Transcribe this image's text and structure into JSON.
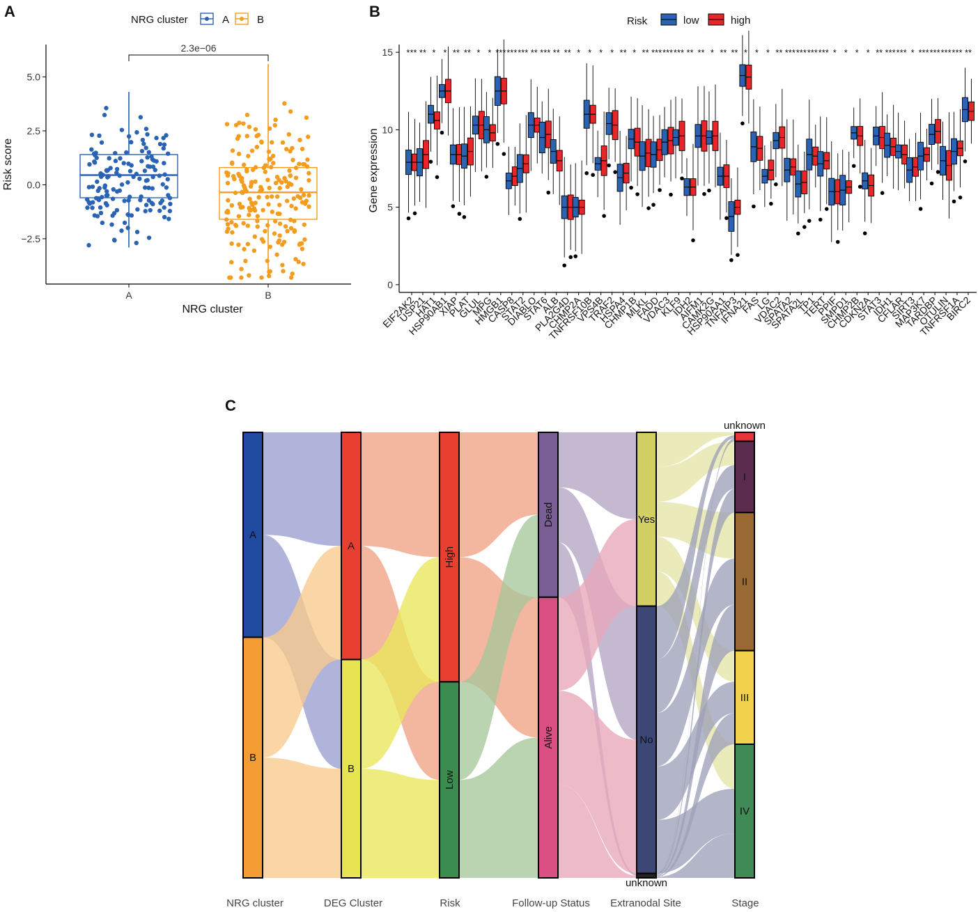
{
  "panels": {
    "a": "A",
    "b": "B",
    "c": "C"
  },
  "chart_data": [
    {
      "type": "box",
      "panel": "A",
      "legend_title": "NRG cluster",
      "xlabel": "NRG cluster",
      "ylabel": "Risk score",
      "categories": [
        "A",
        "B"
      ],
      "colors": {
        "A": "#2a63b4",
        "B": "#f39c1e"
      },
      "ylim": [
        -4.6,
        6.5
      ],
      "yticks": [
        -2.5,
        0.0,
        2.5,
        5.0
      ],
      "ytick_labels": [
        "−2.5",
        "0.0",
        "2.5",
        "5.0"
      ],
      "boxes": [
        {
          "name": "A",
          "min": -2.9,
          "q1": -0.6,
          "median": 0.45,
          "q3": 1.4,
          "max": 4.3,
          "n_points": 150
        },
        {
          "name": "B",
          "min": -4.3,
          "q1": -1.6,
          "median": -0.35,
          "q3": 0.8,
          "max": 5.6,
          "n_points": 210
        }
      ],
      "pvalue": "2.3e−06"
    },
    {
      "type": "box",
      "panel": "B",
      "legend_title": "Risk",
      "series": [
        {
          "name": "low",
          "color": "#2a63b4"
        },
        {
          "name": "high",
          "color": "#e8262a"
        }
      ],
      "ylabel": "Gene expression",
      "ylim": [
        -0.5,
        15.5
      ],
      "yticks": [
        0,
        5,
        10,
        15
      ],
      "genes": [
        "EIF2AK2",
        "USP21",
        "HAT1",
        "HSP90AB1",
        "XIAP",
        "PLAT",
        "GLUL",
        "MPG",
        "HMGB1",
        "CASP8",
        "STAT2",
        "DIABLO",
        "STAT6",
        "ALB",
        "PLA2G4D",
        "CHMP2A",
        "TNFRSF10B",
        "VPS4B",
        "TRAF2",
        "HSPA4",
        "CHMP1B",
        "MLKL",
        "FADD",
        "VDAC3",
        "KLF9",
        "IDH2",
        "AIFM1",
        "CAMK2G",
        "HSP90AA1",
        "TNFAIP3",
        "IFNA21",
        "FAS",
        "LG",
        "VDAC2",
        "SPATA2",
        "SPATA2L",
        "TP1",
        "TERT",
        "PPIF",
        "SMPD1",
        "CHMP2B",
        "CDKN2A",
        "STAT3",
        "IDH1",
        "CFLAR",
        "SIRT3",
        "MAP3K7",
        "TARDBP",
        "OTULIN",
        "TNFRSF1A",
        "BIRC2"
      ],
      "genes_display": [
        "EIF2AK2",
        "USP21",
        "HAT1",
        "HSP90AB1",
        "XIAP",
        "PLAT",
        "GLUL",
        "MPG",
        "HMGB1",
        "CASP8",
        "STAT2",
        "DIABLO",
        "STAT6",
        "ALB",
        "PLA2G4D",
        "CHMP2A",
        "TNFRSF10B",
        "VPS4B",
        "TRAF2",
        "HSPA4",
        "CHMP1B",
        "MLKL",
        "FADD",
        "VDAC3",
        "KLF9",
        "IDH2",
        "AIFM1",
        "CAMK2G",
        "HSP90AA1",
        "TNFAIP3",
        "IFNA21",
        "FAS",
        "LG",
        "VDAC2",
        "SPATA2",
        "SPATA2L",
        "TP1",
        "TERT",
        "PPIF",
        "SMPD1",
        "CHMP2B",
        "CDKN2A",
        "STAT3",
        "IDH1",
        "CFLAR",
        "SIRT3",
        "MAP3K7",
        "TARDBP",
        "OTULIN",
        "TNFRSF1A",
        "BIRC2"
      ],
      "low_medians": [
        7.9,
        7.9,
        11.0,
        12.5,
        8.4,
        8.3,
        10.3,
        10.0,
        12.5,
        6.7,
        7.5,
        10.3,
        9.5,
        8.6,
        5.0,
        5.0,
        11.0,
        7.8,
        10.4,
        6.9,
        9.4,
        8.3,
        8.4,
        9.2,
        9.5,
        6.3,
        9.6,
        9.5,
        7.0,
        4.4,
        13.5,
        8.9,
        7.0,
        9.3,
        7.4,
        6.5,
        8.4,
        7.8,
        6.0,
        6.1,
        9.8,
        6.7,
        9.6,
        9.0,
        8.6,
        7.4,
        8.3,
        9.7,
        8.0,
        8.6,
        11.3
      ],
      "high_medians": [
        7.9,
        8.4,
        10.6,
        12.5,
        8.4,
        8.6,
        10.3,
        9.8,
        12.5,
        7.0,
        7.8,
        10.3,
        9.7,
        8.0,
        5.0,
        5.0,
        11.0,
        8.0,
        10.3,
        7.2,
        9.2,
        8.5,
        8.7,
        9.3,
        9.6,
        6.3,
        9.6,
        9.6,
        7.0,
        5.0,
        13.4,
        8.8,
        7.4,
        9.5,
        7.6,
        6.6,
        8.3,
        8.0,
        6.0,
        6.3,
        9.6,
        6.4,
        9.5,
        8.9,
        8.4,
        7.6,
        8.4,
        9.9,
        7.7,
        8.8,
        11.2
      ],
      "significance_marks": [
        "***",
        "**",
        "*",
        "*",
        "**",
        "**",
        "*",
        "*",
        "***",
        "***",
        "***",
        "**",
        "***",
        "**",
        "**",
        "*",
        "*",
        "*",
        "*",
        "**",
        "*",
        "**",
        "***",
        "***",
        "***",
        "**",
        "**",
        "*",
        "**",
        "**",
        "*",
        "*",
        "*",
        "**",
        "***",
        "***",
        "***",
        "***",
        "*",
        "*",
        "*",
        "*",
        "**",
        "***",
        "***",
        "*",
        "***",
        "***",
        "***",
        "***",
        "**"
      ]
    },
    {
      "type": "sankey",
      "panel": "C",
      "axes": [
        "NRG cluster",
        "DEG Cluster",
        "Risk",
        "Follow-up Status",
        "Extranodal Site",
        "Stage"
      ],
      "nodes": [
        {
          "axis": "NRG cluster",
          "items": [
            {
              "label": "A",
              "value": 46,
              "color": "#1f4aa0"
            },
            {
              "label": "B",
              "value": 54,
              "color": "#f39c34"
            }
          ]
        },
        {
          "axis": "DEG Cluster",
          "items": [
            {
              "label": "A",
              "value": 51,
              "color": "#e84030"
            },
            {
              "label": "B",
              "value": 49,
              "color": "#e6e452"
            }
          ]
        },
        {
          "axis": "Risk",
          "items": [
            {
              "label": "High",
              "value": 56,
              "color": "#e84030"
            },
            {
              "label": "Low",
              "value": 44,
              "color": "#3a8c4f"
            }
          ]
        },
        {
          "axis": "Follow-up Status",
          "items": [
            {
              "label": "Dead",
              "value": 37,
              "color": "#7a5f96"
            },
            {
              "label": "Alive",
              "value": 63,
              "color": "#d94f82"
            }
          ]
        },
        {
          "axis": "Extranodal Site",
          "items": [
            {
              "label": "Yes",
              "value": 39,
              "color": "#d3d063"
            },
            {
              "label": "No",
              "value": 60,
              "color": "#3d4775"
            },
            {
              "label": "unknown",
              "value": 1,
              "color": "#222222"
            }
          ]
        },
        {
          "axis": "Stage",
          "items": [
            {
              "label": "unknown",
              "value": 2,
              "color": "#e8373a"
            },
            {
              "label": "I",
              "value": 16,
              "color": "#5b2c4e"
            },
            {
              "label": "II",
              "value": 31,
              "color": "#9a6a35"
            },
            {
              "label": "III",
              "value": 21,
              "color": "#f2d24c"
            },
            {
              "label": "IV",
              "value": 30,
              "color": "#3f8a56"
            }
          ]
        }
      ]
    }
  ]
}
